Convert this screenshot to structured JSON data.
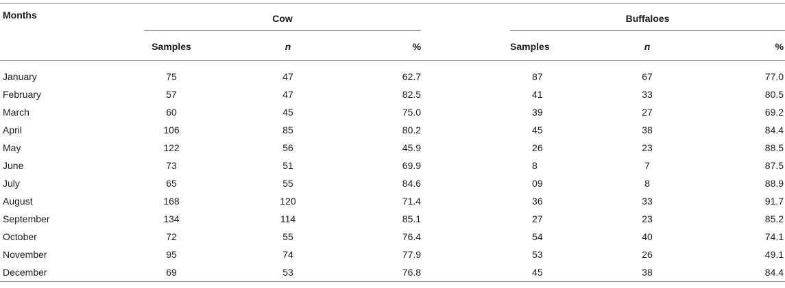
{
  "table": {
    "corner_header": "Months",
    "groups": [
      "Cow",
      "Buffaloes"
    ],
    "subheaders": [
      "Samples",
      "n",
      "%",
      "Samples",
      "n",
      "%"
    ],
    "rows": [
      {
        "month": "January",
        "cow_samples": "75",
        "cow_n": "47",
        "cow_pct": "62.7",
        "buf_samples": "87",
        "buf_n": "67",
        "buf_pct": "77.0"
      },
      {
        "month": "February",
        "cow_samples": "57",
        "cow_n": "47",
        "cow_pct": "82.5",
        "buf_samples": "41",
        "buf_n": "33",
        "buf_pct": "80.5"
      },
      {
        "month": "March",
        "cow_samples": "60",
        "cow_n": "45",
        "cow_pct": "75.0",
        "buf_samples": "39",
        "buf_n": "27",
        "buf_pct": "69.2"
      },
      {
        "month": "April",
        "cow_samples": "106",
        "cow_n": "85",
        "cow_pct": "80.2",
        "buf_samples": "45",
        "buf_n": "38",
        "buf_pct": "84.4"
      },
      {
        "month": "May",
        "cow_samples": "122",
        "cow_n": "56",
        "cow_pct": "45.9",
        "buf_samples": "26",
        "buf_n": "23",
        "buf_pct": "88.5"
      },
      {
        "month": "June",
        "cow_samples": "73",
        "cow_n": "51",
        "cow_pct": "69.9",
        "buf_samples": "8",
        "buf_n": "7",
        "buf_pct": "87.5"
      },
      {
        "month": "July",
        "cow_samples": "65",
        "cow_n": "55",
        "cow_pct": "84.6",
        "buf_samples": "09",
        "buf_n": "8",
        "buf_pct": "88.9"
      },
      {
        "month": "August",
        "cow_samples": "168",
        "cow_n": "120",
        "cow_pct": "71.4",
        "buf_samples": "36",
        "buf_n": "33",
        "buf_pct": "91.7"
      },
      {
        "month": "September",
        "cow_samples": "134",
        "cow_n": "114",
        "cow_pct": "85.1",
        "buf_samples": "27",
        "buf_n": "23",
        "buf_pct": "85.2"
      },
      {
        "month": "October",
        "cow_samples": "72",
        "cow_n": "55",
        "cow_pct": "76.4",
        "buf_samples": "54",
        "buf_n": "40",
        "buf_pct": "74.1"
      },
      {
        "month": "November",
        "cow_samples": "95",
        "cow_n": "74",
        "cow_pct": "77.9",
        "buf_samples": "53",
        "buf_n": "26",
        "buf_pct": "49.1"
      },
      {
        "month": "December",
        "cow_samples": "69",
        "cow_n": "53",
        "cow_pct": "76.8",
        "buf_samples": "45",
        "buf_n": "38",
        "buf_pct": "84.4"
      }
    ]
  }
}
